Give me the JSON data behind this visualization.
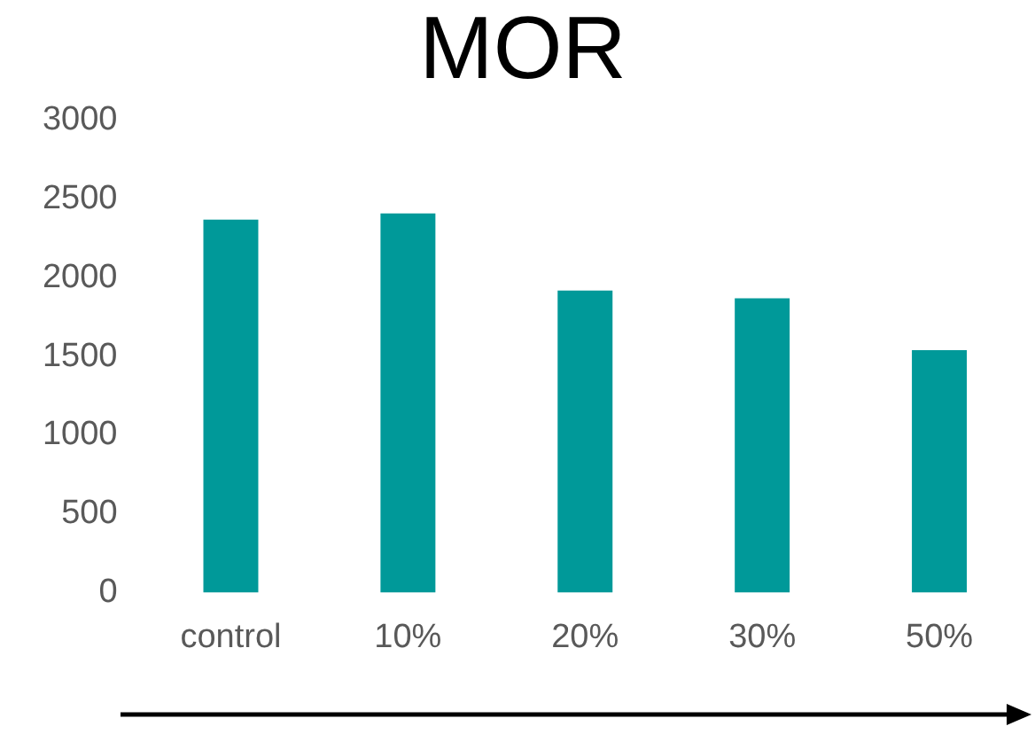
{
  "chart_data": {
    "type": "bar",
    "title": "MOR",
    "categories": [
      "control",
      "10%",
      "20%",
      "30%",
      "50%"
    ],
    "values": [
      2370,
      2410,
      1920,
      1870,
      1540
    ],
    "color": "#009999",
    "ylim": [
      0,
      3000
    ],
    "yticks": [
      0,
      500,
      1000,
      1500,
      2000,
      2500,
      3000
    ],
    "grid": false,
    "legend": false
  }
}
